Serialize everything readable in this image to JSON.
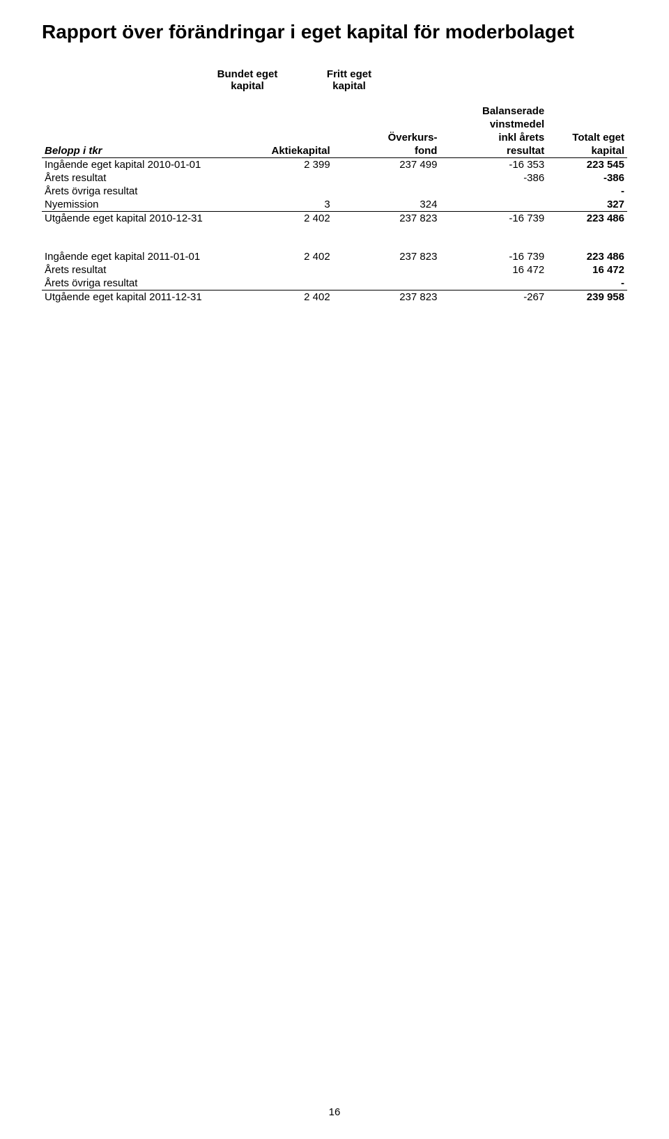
{
  "title": "Rapport över förändringar i eget kapital för moderbolaget",
  "group_headers": {
    "bound": "Bundet eget kapital",
    "free": "Fritt eget kapital"
  },
  "col_headers": {
    "label": "Belopp i tkr",
    "aktiekapital": "Aktiekapital",
    "overkurs_l1": "Överkurs-",
    "overkurs_l2": "fond",
    "bal_l1": "Balanserade",
    "bal_l2": "vinstmedel",
    "bal_l3": "inkl årets",
    "bal_l4": "resultat",
    "tot_l1": "Totalt eget",
    "tot_l2": "kapital"
  },
  "block1": {
    "rows": {
      "ing": {
        "label": "Ingående eget kapital 2010-01-01",
        "ak": "2 399",
        "ok": "237 499",
        "bal": "-16 353",
        "tot": "223 545"
      },
      "ares": {
        "label": "Årets resultat",
        "ak": "",
        "ok": "",
        "bal": "-386",
        "tot": "-386"
      },
      "aovr": {
        "label": "Årets övriga resultat",
        "ak": "",
        "ok": "",
        "bal": "",
        "tot": "-"
      },
      "nye": {
        "label": "Nyemission",
        "ak": "3",
        "ok": "324",
        "bal": "",
        "tot": "327"
      },
      "utg": {
        "label": "Utgående eget kapital 2010-12-31",
        "ak": "2 402",
        "ok": "237 823",
        "bal": "-16 739",
        "tot": "223 486"
      }
    }
  },
  "block2": {
    "rows": {
      "ing": {
        "label": "Ingående eget kapital 2011-01-01",
        "ak": "2 402",
        "ok": "237 823",
        "bal": "-16 739",
        "tot": "223 486"
      },
      "ares": {
        "label": "Årets resultat",
        "ak": "",
        "ok": "",
        "bal": "16 472",
        "tot": "16 472"
      },
      "aovr": {
        "label": "Årets övriga resultat",
        "ak": "",
        "ok": "",
        "bal": "",
        "tot": "-"
      },
      "utg": {
        "label": "Utgående eget kapital 2011-12-31",
        "ak": "2 402",
        "ok": "237 823",
        "bal": "-267",
        "tot": "239 958"
      }
    }
  },
  "page_number": "16"
}
